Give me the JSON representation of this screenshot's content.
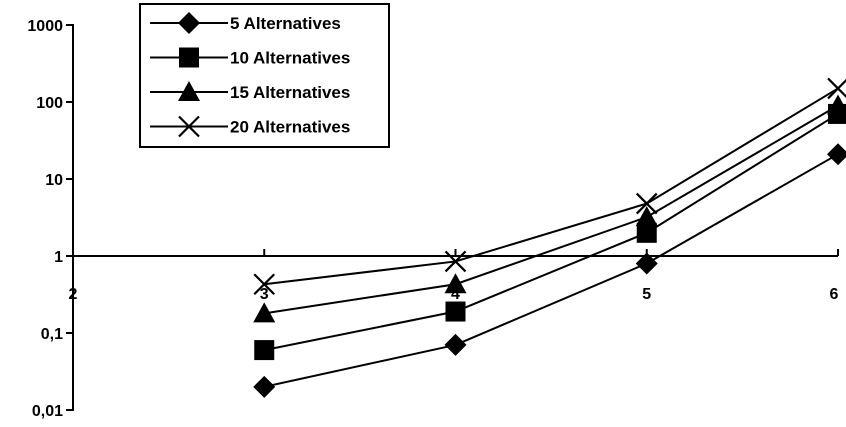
{
  "chart_data": {
    "type": "line",
    "title": "",
    "xlabel": "",
    "ylabel": "",
    "y_scale": "log",
    "ylim": [
      0.01,
      1000
    ],
    "xlim": [
      2,
      6
    ],
    "x_ticks": [
      "2",
      "3",
      "4",
      "5",
      "6"
    ],
    "y_ticks": [
      "0,01",
      "0,1",
      "1",
      "10",
      "100",
      "1000"
    ],
    "x": [
      3,
      4,
      5,
      6
    ],
    "legend_position": "top-left",
    "grid": false,
    "series": [
      {
        "name": "5 Alternatives",
        "marker": "diamond",
        "color": "#000000",
        "values": [
          0.02,
          0.07,
          0.8,
          21
        ]
      },
      {
        "name": "10 Alternatives",
        "marker": "square",
        "color": "#000000",
        "values": [
          0.06,
          0.19,
          2.0,
          70
        ]
      },
      {
        "name": "15 Alternatives",
        "marker": "triangle",
        "color": "#000000",
        "values": [
          0.18,
          0.43,
          3.2,
          90
        ]
      },
      {
        "name": "20 Alternatives",
        "marker": "x",
        "color": "#000000",
        "values": [
          0.43,
          0.85,
          4.8,
          150
        ]
      }
    ]
  }
}
